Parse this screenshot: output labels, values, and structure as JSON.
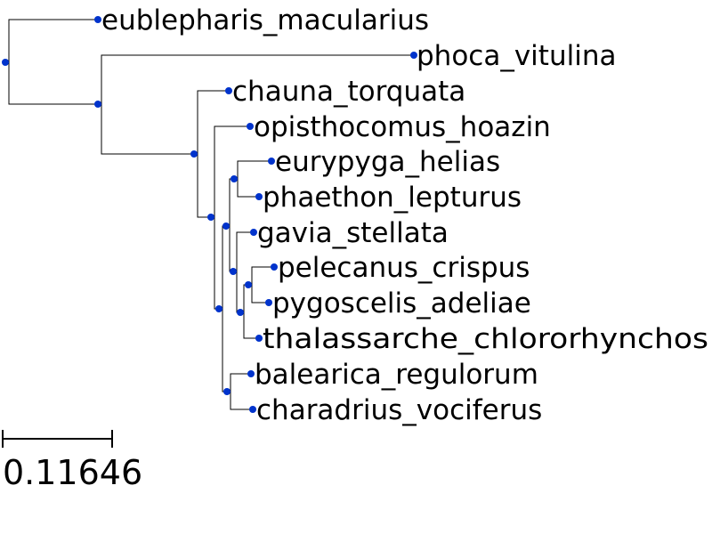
{
  "tree": {
    "leaves": [
      "eublepharis_macularius",
      "phoca_vitulina",
      "chauna_torquata",
      "opisthocomus_hoazin",
      "eurypyga_helias",
      "phaethon_lepturus",
      "gavia_stellata",
      "pelecanus_crispus",
      "pygoscelis_adeliae",
      "thalassarche_chlororhynchos",
      "balearica_regulorum",
      "charadrius_vociferus"
    ],
    "scale_bar": {
      "label": "0.11646",
      "value": 0.11646
    },
    "colors": {
      "node": "#0033cc",
      "branch": "#000000"
    }
  }
}
